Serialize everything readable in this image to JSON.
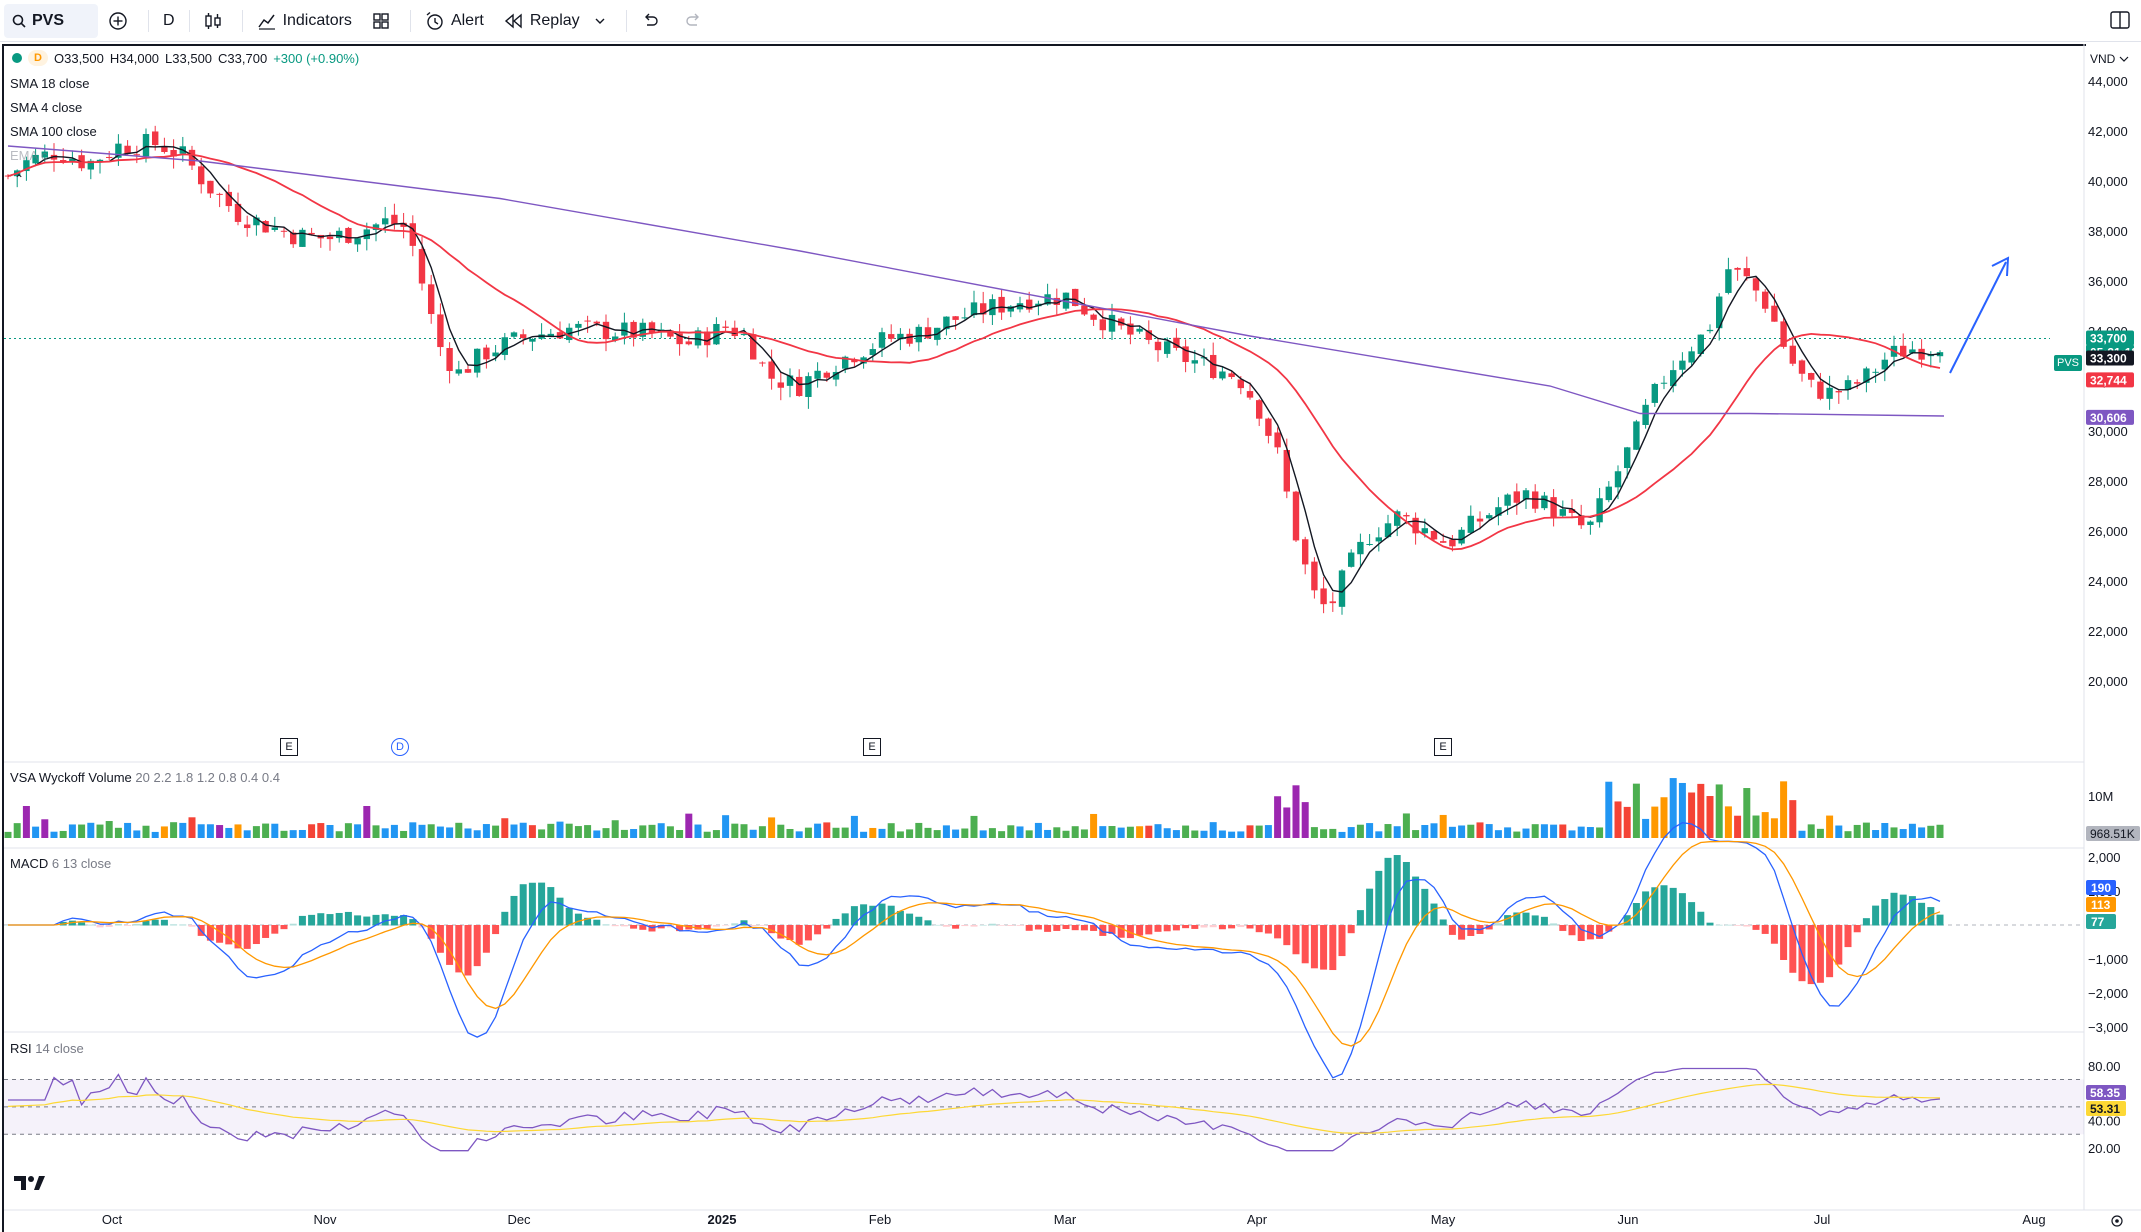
{
  "toolbar": {
    "symbol": "PVS",
    "interval": "D",
    "indicators_label": "Indicators",
    "alert_label": "Alert",
    "replay_label": "Replay"
  },
  "legend": {
    "badge": "D",
    "open": "O33,500",
    "high": "H34,000",
    "low": "L33,500",
    "close": "C33,700",
    "change": "+300 (+0.90%)"
  },
  "indicators": {
    "sma18": "SMA 18 close",
    "sma4": "SMA 4 close",
    "sma100": "SMA 100 close",
    "ema": "EMA c"
  },
  "currency": "VND",
  "price_axis": [
    "44,000",
    "42,000",
    "40,000",
    "38,000",
    "36,000",
    "34,000",
    "32,000",
    "30,000",
    "28,000",
    "26,000",
    "24,000",
    "22,000",
    "20,000"
  ],
  "price_tags": {
    "last": "33,700",
    "countdown": "05:31:18",
    "sma4": "33,300",
    "sma18": "32,744",
    "sma100": "30,606",
    "pvs_flag": "PVS"
  },
  "volume": {
    "title": "VSA Wyckoff Volume",
    "params": "20 2.2 1.8 1.2 0.8 0.4 0.4",
    "axis": "10M",
    "last_tag": "968.51K"
  },
  "macd": {
    "title": "MACD",
    "params": "6 13 close",
    "axis": [
      "2,000",
      "1,000",
      "0",
      "−1,000",
      "−2,000",
      "−3,000"
    ],
    "tags": {
      "macd": "190",
      "signal": "113",
      "hist": "77"
    }
  },
  "rsi": {
    "title": "RSI",
    "params": "14 close",
    "axis": [
      "80.00",
      "60.00",
      "40.00",
      "20.00"
    ],
    "tags": {
      "rsi": "58.35",
      "ma": "53.31"
    }
  },
  "time_axis": [
    "Oct",
    "Nov",
    "Dec",
    "2025",
    "Feb",
    "Mar",
    "Apr",
    "May",
    "Jun",
    "Jul",
    "Aug"
  ],
  "markers": {
    "e": "E",
    "d": "D"
  },
  "colors": {
    "up": "#089981",
    "down": "#f23645",
    "sma4": "#131722",
    "sma18": "#f23645",
    "sma100": "#7e57c2",
    "macd_line": "#2962ff",
    "signal_line": "#ff9800",
    "rsi_line": "#7e57c2",
    "rsi_ma": "#fdd835"
  }
}
